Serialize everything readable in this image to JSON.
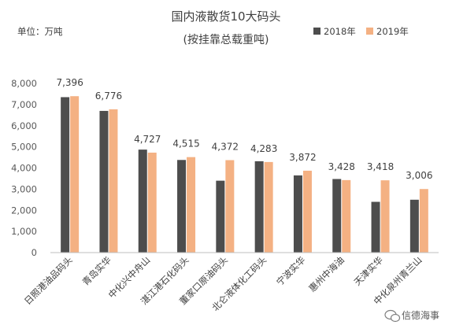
{
  "chart_data": {
    "type": "bar",
    "title": "国内液散货10大码头",
    "subtitle": "(按挂靠总载重吨)",
    "unit_label": "单位：万吨",
    "categories": [
      "日照港油品码头",
      "青岛实华",
      "中化兴中舟山",
      "湛江港石化码头",
      "董家口原油码头",
      "北仑液体化工码头",
      "宁波实华",
      "惠州中海油",
      "天津实华",
      "中化泉州青兰山"
    ],
    "series": [
      {
        "name": "2018年",
        "color": "#4d4d4d",
        "values": [
          7350,
          6700,
          4870,
          4380,
          3400,
          4320,
          3650,
          3480,
          2400,
          2500
        ]
      },
      {
        "name": "2019年",
        "color": "#f4b183",
        "values": [
          7396,
          6776,
          4727,
          4515,
          4372,
          4283,
          3872,
          3428,
          3418,
          3006
        ]
      }
    ],
    "data_labels": [
      "7,396",
      "6,776",
      "4,727",
      "4,515",
      "4,372",
      "4,283",
      "3,872",
      "3,428",
      "3,418",
      "3,006"
    ],
    "yticks": [
      "0",
      "1,000",
      "2,000",
      "3,000",
      "4,000",
      "5,000",
      "6,000",
      "7,000",
      "8,000"
    ],
    "ylim": [
      0,
      8000
    ],
    "legend_position": "top-right",
    "grid": false
  },
  "watermark": {
    "text": "信德海事",
    "icon": "wechat-icon"
  }
}
